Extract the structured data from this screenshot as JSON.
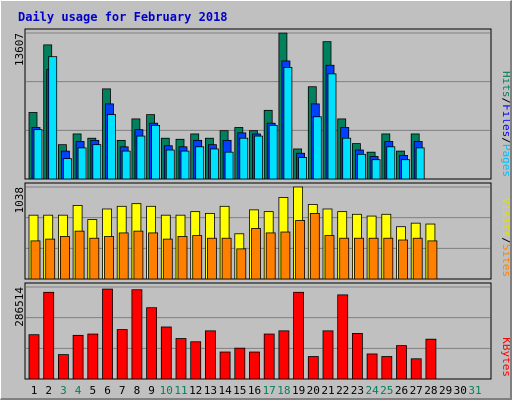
{
  "title": "Daily usage for February 2018",
  "colors": {
    "background": "#c0c0c0",
    "panel": "#c0c0c0",
    "title": "#0000cc",
    "pages_front": "#00e0ff",
    "pages_back": "#00805c",
    "files_front": "#0040ff",
    "files_back": "#00805c",
    "hits_back": "#00805c",
    "visits": "#ffff00",
    "sites": "#ff8000",
    "kbytes": "#ff0000",
    "weekday_label": "#000000",
    "weekend_label": "#00805c"
  },
  "legends": {
    "top": [
      {
        "text": "Pages",
        "color": "#00c0ff"
      },
      {
        "text": "Files",
        "color": "#0000ff"
      },
      {
        "text": "Hits",
        "color": "#00805c"
      }
    ],
    "mid": [
      {
        "text": "Sites",
        "color": "#ff8000"
      },
      {
        "text": "Visits",
        "color": "#e0e000"
      }
    ],
    "bottom": [
      {
        "text": "KBytes",
        "color": "#ff0000"
      }
    ],
    "separator": "/"
  },
  "chart_data": [
    {
      "type": "bar",
      "panel": "hits-files-pages",
      "ymax_label": "13607",
      "ylim": [
        0,
        13607
      ],
      "categories": [
        "1",
        "2",
        "3",
        "4",
        "5",
        "6",
        "7",
        "8",
        "9",
        "10",
        "11",
        "12",
        "13",
        "14",
        "15",
        "16",
        "17",
        "18",
        "19",
        "20",
        "21",
        "22",
        "23",
        "24",
        "25",
        "26",
        "27",
        "28",
        "29",
        "30",
        "31"
      ],
      "weekend": [
        false,
        false,
        true,
        true,
        false,
        false,
        false,
        false,
        false,
        true,
        true,
        false,
        false,
        false,
        false,
        false,
        true,
        true,
        false,
        false,
        false,
        false,
        false,
        true,
        true,
        false,
        false,
        false,
        false,
        false,
        true
      ],
      "series": [
        {
          "name": "Hits",
          "values": [
            6200,
            12500,
            3200,
            4200,
            3800,
            8400,
            3600,
            5600,
            6000,
            3800,
            3700,
            4200,
            3800,
            4500,
            4800,
            4500,
            6400,
            13600,
            2800,
            8600,
            12800,
            5600,
            3300,
            2500,
            4200,
            2600,
            4200,
            0,
            0,
            0,
            0
          ]
        },
        {
          "name": "Files",
          "values": [
            4800,
            10200,
            2600,
            3500,
            3600,
            7000,
            3000,
            4600,
            5200,
            3100,
            3000,
            3600,
            3200,
            3600,
            4300,
            4200,
            5200,
            11000,
            2400,
            7000,
            10600,
            4800,
            2700,
            2100,
            3500,
            2200,
            3500,
            0,
            0,
            0,
            0
          ]
        },
        {
          "name": "Pages",
          "values": [
            4600,
            11400,
            1900,
            2900,
            3200,
            6000,
            2600,
            4000,
            5000,
            2700,
            2600,
            3000,
            2800,
            2500,
            3800,
            4000,
            5000,
            10400,
            2000,
            5800,
            9800,
            3800,
            2300,
            1800,
            3000,
            1800,
            2900,
            0,
            0,
            0,
            0
          ]
        }
      ]
    },
    {
      "type": "bar",
      "panel": "visits-sites",
      "ymax_label": "1038",
      "ylim": [
        0,
        1038
      ],
      "categories": [
        "1",
        "2",
        "3",
        "4",
        "5",
        "6",
        "7",
        "8",
        "9",
        "10",
        "11",
        "12",
        "13",
        "14",
        "15",
        "16",
        "17",
        "18",
        "19",
        "20",
        "21",
        "22",
        "23",
        "24",
        "25",
        "26",
        "27",
        "28",
        "29",
        "30",
        "31"
      ],
      "series": [
        {
          "name": "Visits",
          "values": [
            720,
            720,
            720,
            830,
            670,
            790,
            820,
            850,
            820,
            720,
            720,
            760,
            740,
            820,
            510,
            780,
            760,
            920,
            1038,
            840,
            790,
            760,
            730,
            710,
            730,
            590,
            630,
            620,
            0,
            0,
            0
          ]
        },
        {
          "name": "Sites",
          "values": [
            430,
            450,
            480,
            540,
            460,
            480,
            520,
            540,
            520,
            450,
            480,
            490,
            460,
            460,
            340,
            570,
            520,
            530,
            660,
            740,
            490,
            460,
            460,
            460,
            460,
            440,
            460,
            430,
            0,
            0,
            0
          ]
        }
      ]
    },
    {
      "type": "bar",
      "panel": "kbytes",
      "ymax_label": "286514",
      "ylim": [
        0,
        286514
      ],
      "categories": [
        "1",
        "2",
        "3",
        "4",
        "5",
        "6",
        "7",
        "8",
        "9",
        "10",
        "11",
        "12",
        "13",
        "14",
        "15",
        "16",
        "17",
        "18",
        "19",
        "20",
        "21",
        "22",
        "23",
        "24",
        "25",
        "26",
        "27",
        "28",
        "29",
        "30",
        "31"
      ],
      "series": [
        {
          "name": "KBytes",
          "values": [
            138000,
            270000,
            76000,
            136000,
            140000,
            280000,
            154000,
            278000,
            222000,
            162000,
            126000,
            116000,
            150000,
            84000,
            96000,
            84000,
            140000,
            150000,
            270000,
            70000,
            150000,
            262000,
            142000,
            78000,
            70000,
            104000,
            63000,
            124000,
            0,
            0,
            0
          ]
        }
      ]
    }
  ]
}
